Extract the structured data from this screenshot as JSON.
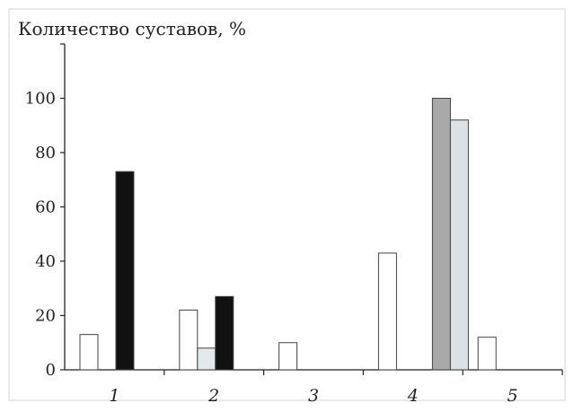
{
  "chart_data": {
    "type": "bar",
    "title": "Количество суставов, %",
    "xlabel": "",
    "ylabel": "",
    "categories": [
      "1",
      "2",
      "3",
      "4",
      "5"
    ],
    "yticks": [
      0,
      20,
      40,
      60,
      80,
      100
    ],
    "ylim": [
      0,
      120
    ],
    "grid": false,
    "legend": "none",
    "series": [
      {
        "color": "#ffffff",
        "values": [
          13,
          22,
          10,
          43,
          12
        ]
      },
      {
        "color": "#e3e8ea",
        "values": [
          0,
          8,
          0,
          0,
          0
        ]
      },
      {
        "color": "#111111",
        "values": [
          73,
          27,
          0,
          0,
          0
        ]
      },
      {
        "color": "#a9a9a9",
        "values": [
          0,
          0,
          0,
          100,
          0
        ]
      },
      {
        "color": "#dce1e3",
        "values": [
          0,
          0,
          0,
          92,
          0
        ]
      }
    ]
  }
}
